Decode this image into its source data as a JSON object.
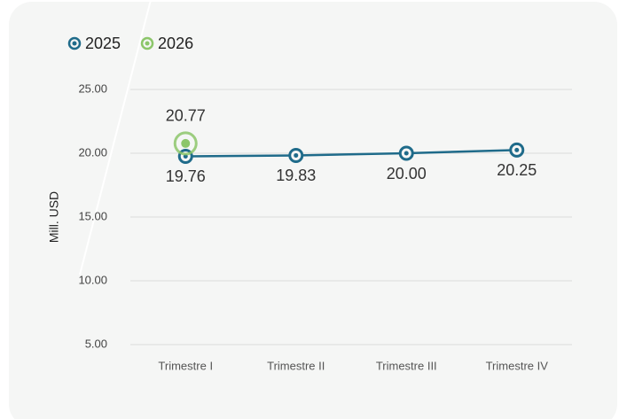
{
  "chart_data": {
    "type": "line",
    "y_axis_label": "Mill. USD",
    "categories": [
      "Trimestre I",
      "Trimestre II",
      "Trimestre III",
      "Trimestre IV"
    ],
    "series": [
      {
        "name": "2025",
        "color": "#1f6b8a",
        "values": [
          19.76,
          19.83,
          20,
          20.25
        ],
        "value_labels": [
          "19.76",
          "19.83",
          "20.00",
          "20.25"
        ]
      },
      {
        "name": "2026",
        "color": "#8cc66a",
        "values": [
          20.77,
          null,
          null,
          null
        ],
        "value_labels": [
          "20.77",
          null,
          null,
          null
        ]
      }
    ],
    "ylim": [
      5,
      25
    ],
    "yticks": [
      {
        "value": 5,
        "label": "5.00"
      },
      {
        "value": 10,
        "label": "10.00"
      },
      {
        "value": 15,
        "label": "15.00"
      },
      {
        "value": 20,
        "label": "20.00"
      },
      {
        "value": 25,
        "label": "25.00"
      }
    ],
    "grid": true,
    "legend": "top-left"
  }
}
